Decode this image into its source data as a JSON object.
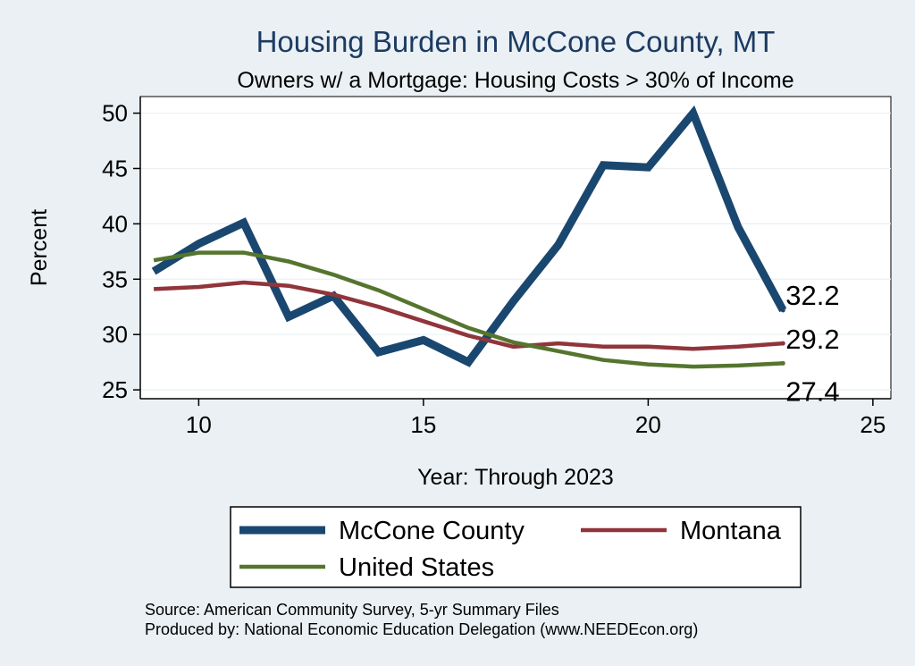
{
  "chart_data": {
    "type": "line",
    "title": "Housing Burden in McCone County, MT",
    "subtitle": "Owners w/ a Mortgage: Housing Costs > 30% of Income",
    "xlabel": "Year: Through 2023",
    "ylabel": "Percent",
    "xlim": [
      8.7,
      25.4
    ],
    "ylim": [
      24.2,
      51.5
    ],
    "x_ticks": [
      10,
      15,
      20,
      25
    ],
    "y_ticks": [
      25,
      30,
      35,
      40,
      45,
      50
    ],
    "grid": true,
    "x": [
      9,
      10,
      11,
      12,
      13,
      14,
      15,
      16,
      17,
      18,
      19,
      20,
      21,
      22,
      23
    ],
    "series": [
      {
        "name": "McCone County",
        "color": "#1a476f",
        "values": [
          35.7,
          38.2,
          40.1,
          31.6,
          33.5,
          28.4,
          29.5,
          27.5,
          33.0,
          38.1,
          45.3,
          45.1,
          50.0,
          39.7,
          32.2
        ],
        "end_label": "32.2"
      },
      {
        "name": "Montana",
        "color": "#90353b",
        "values": [
          34.1,
          34.3,
          34.7,
          34.4,
          33.6,
          32.5,
          31.2,
          29.9,
          28.9,
          29.2,
          28.9,
          28.9,
          28.7,
          28.9,
          29.2
        ],
        "end_label": "29.2"
      },
      {
        "name": "United States",
        "color": "#55752f",
        "values": [
          36.7,
          37.4,
          37.4,
          36.6,
          35.4,
          34.0,
          32.3,
          30.6,
          29.3,
          28.5,
          27.7,
          27.3,
          27.1,
          27.2,
          27.4
        ],
        "end_label": "27.4"
      }
    ],
    "legend_position": "bottom"
  },
  "notes": {
    "source": "Source: American Community Survey, 5-yr Summary Files",
    "produced_by": "Produced by: National Economic Education Delegation (www.NEEDEcon.org)"
  }
}
